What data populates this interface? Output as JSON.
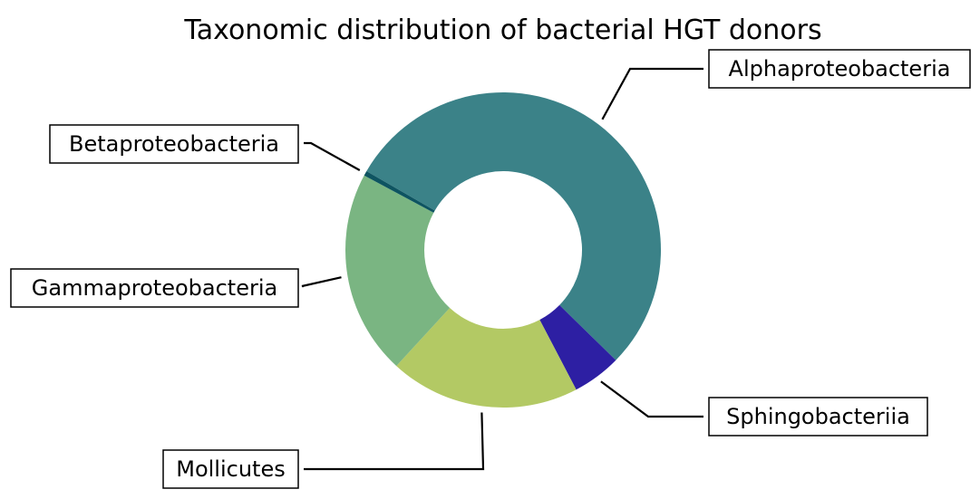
{
  "chart_data": {
    "type": "pie",
    "title": "Taxonomic distribution of bacterial HGT donors",
    "donut": true,
    "start_angle_deg": 150,
    "direction": "clockwise",
    "slices": [
      {
        "label": "Alphaproteobacteria",
        "value": 54.0,
        "color": "#3b8288"
      },
      {
        "label": "Sphingobacteriia",
        "value": 5.0,
        "color": "#2d1fa3"
      },
      {
        "label": "Mollicutes",
        "value": 19.5,
        "color": "#b3c964"
      },
      {
        "label": "Gammaproteobacteria",
        "value": 21.0,
        "color": "#7ab582"
      },
      {
        "label": "Betaproteobacteria",
        "value": 0.5,
        "color": "#0e5461"
      }
    ]
  }
}
